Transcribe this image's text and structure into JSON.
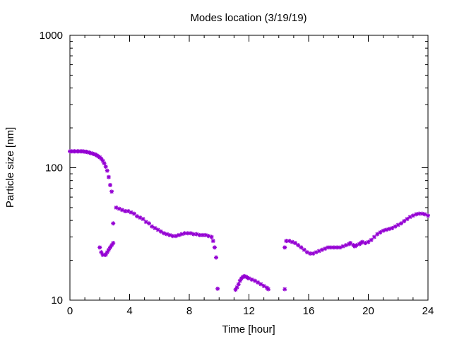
{
  "chart_data": {
    "type": "scatter",
    "title": "Modes location (3/19/19)",
    "xlabel": "Time [hour]",
    "ylabel": "Particle size [nm]",
    "xlim": [
      0,
      24
    ],
    "ylim": [
      10,
      1000
    ],
    "yscale": "log",
    "grid": false,
    "x_ticks": [
      0,
      4,
      8,
      12,
      16,
      20,
      24
    ],
    "x_tick_labels": [
      "0",
      "4",
      "8",
      "12",
      "16",
      "20",
      "24"
    ],
    "y_ticks": [
      10,
      100,
      1000
    ],
    "y_tick_labels": [
      "10",
      "100",
      "1000"
    ],
    "marker_color": "#9400d3",
    "series": [
      {
        "name": "",
        "points": [
          [
            0.0,
            133
          ],
          [
            0.1,
            133
          ],
          [
            0.2,
            133
          ],
          [
            0.3,
            133
          ],
          [
            0.4,
            133
          ],
          [
            0.5,
            133
          ],
          [
            0.6,
            133
          ],
          [
            0.7,
            133
          ],
          [
            0.8,
            133
          ],
          [
            0.9,
            133
          ],
          [
            1.0,
            132
          ],
          [
            1.1,
            132
          ],
          [
            1.2,
            131
          ],
          [
            1.3,
            130
          ],
          [
            1.4,
            129
          ],
          [
            1.5,
            128
          ],
          [
            1.6,
            127
          ],
          [
            1.7,
            126
          ],
          [
            1.8,
            124
          ],
          [
            1.9,
            122
          ],
          [
            2.0,
            120
          ],
          [
            2.1,
            117
          ],
          [
            2.2,
            113
          ],
          [
            2.3,
            108
          ],
          [
            2.4,
            102
          ],
          [
            2.5,
            95
          ],
          [
            2.6,
            85
          ],
          [
            2.7,
            74
          ],
          [
            2.8,
            66
          ],
          [
            2.9,
            38
          ],
          [
            2.0,
            25
          ],
          [
            2.1,
            23
          ],
          [
            2.2,
            22
          ],
          [
            2.3,
            22
          ],
          [
            2.4,
            22
          ],
          [
            2.5,
            23
          ],
          [
            2.6,
            24
          ],
          [
            2.7,
            25
          ],
          [
            2.8,
            26
          ],
          [
            2.9,
            27
          ],
          [
            3.1,
            50
          ],
          [
            3.3,
            49
          ],
          [
            3.5,
            48
          ],
          [
            3.7,
            47
          ],
          [
            3.9,
            47
          ],
          [
            4.1,
            46
          ],
          [
            4.3,
            45
          ],
          [
            4.5,
            43
          ],
          [
            4.7,
            42
          ],
          [
            4.9,
            41
          ],
          [
            5.1,
            39
          ],
          [
            5.3,
            38
          ],
          [
            5.5,
            36
          ],
          [
            5.7,
            35
          ],
          [
            5.9,
            34
          ],
          [
            6.1,
            33
          ],
          [
            6.3,
            32
          ],
          [
            6.5,
            31.5
          ],
          [
            6.7,
            31
          ],
          [
            6.9,
            30.5
          ],
          [
            7.1,
            30.5
          ],
          [
            7.3,
            31
          ],
          [
            7.5,
            31.5
          ],
          [
            7.7,
            32
          ],
          [
            7.9,
            32
          ],
          [
            8.1,
            32
          ],
          [
            8.3,
            31.5
          ],
          [
            8.5,
            31.5
          ],
          [
            8.7,
            31
          ],
          [
            8.9,
            31
          ],
          [
            9.1,
            31
          ],
          [
            9.3,
            30.5
          ],
          [
            9.5,
            30
          ],
          [
            9.6,
            28
          ],
          [
            9.7,
            25
          ],
          [
            9.8,
            21
          ],
          [
            9.9,
            12.2
          ],
          [
            11.1,
            12
          ],
          [
            11.2,
            12.5
          ],
          [
            11.3,
            13.2
          ],
          [
            11.4,
            14
          ],
          [
            11.5,
            14.6
          ],
          [
            11.6,
            15
          ],
          [
            11.7,
            15.2
          ],
          [
            11.8,
            15
          ],
          [
            11.9,
            14.8
          ],
          [
            12.0,
            14.6
          ],
          [
            12.2,
            14.3
          ],
          [
            12.4,
            14
          ],
          [
            12.6,
            13.6
          ],
          [
            12.8,
            13.2
          ],
          [
            13.0,
            12.8
          ],
          [
            13.2,
            12.4
          ],
          [
            13.3,
            12.1
          ],
          [
            14.4,
            12.1
          ],
          [
            14.4,
            25
          ],
          [
            14.5,
            28
          ],
          [
            14.7,
            28
          ],
          [
            14.9,
            27.5
          ],
          [
            15.1,
            27
          ],
          [
            15.3,
            26
          ],
          [
            15.5,
            25
          ],
          [
            15.7,
            24
          ],
          [
            15.9,
            23
          ],
          [
            16.1,
            22.5
          ],
          [
            16.3,
            22.5
          ],
          [
            16.5,
            23
          ],
          [
            16.7,
            23.5
          ],
          [
            16.9,
            24
          ],
          [
            17.1,
            24.5
          ],
          [
            17.3,
            25
          ],
          [
            17.5,
            25
          ],
          [
            17.7,
            25
          ],
          [
            17.9,
            25
          ],
          [
            18.1,
            25
          ],
          [
            18.3,
            25.5
          ],
          [
            18.5,
            26
          ],
          [
            18.7,
            26.5
          ],
          [
            18.8,
            27
          ],
          [
            19.0,
            26
          ],
          [
            19.1,
            25.5
          ],
          [
            19.2,
            26
          ],
          [
            19.4,
            26.5
          ],
          [
            19.5,
            27
          ],
          [
            19.6,
            27.5
          ],
          [
            19.8,
            27
          ],
          [
            20.0,
            27.5
          ],
          [
            20.2,
            28.5
          ],
          [
            20.4,
            30
          ],
          [
            20.6,
            31.5
          ],
          [
            20.8,
            32.5
          ],
          [
            21.0,
            33.5
          ],
          [
            21.2,
            34
          ],
          [
            21.4,
            34.5
          ],
          [
            21.6,
            35
          ],
          [
            21.8,
            36
          ],
          [
            22.0,
            37
          ],
          [
            22.2,
            38
          ],
          [
            22.4,
            39.5
          ],
          [
            22.6,
            41
          ],
          [
            22.8,
            42.5
          ],
          [
            23.0,
            43.5
          ],
          [
            23.2,
            44.5
          ],
          [
            23.4,
            45
          ],
          [
            23.6,
            45
          ],
          [
            23.8,
            44.5
          ],
          [
            24.0,
            43.5
          ]
        ]
      }
    ]
  }
}
